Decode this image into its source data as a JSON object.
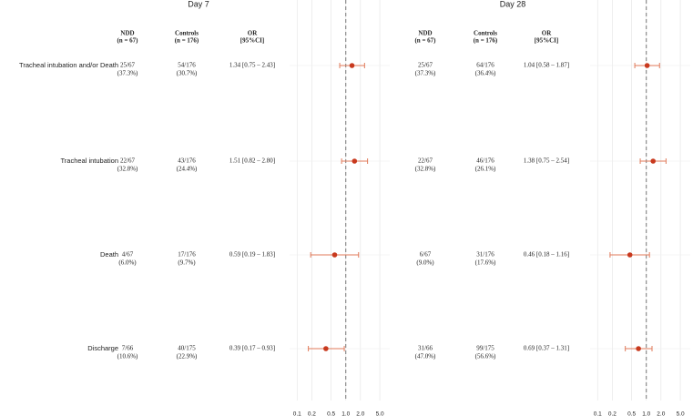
{
  "chart_data": {
    "type": "forest",
    "categories": [
      "Tracheal intubation and/or Death",
      "Tracheal intubation",
      "Death",
      "Discharge"
    ],
    "refline": 1,
    "grid": true,
    "panels": [
      {
        "title": "Day 7",
        "columns": [
          [
            "NDD",
            "(n = 67)"
          ],
          [
            "Controls",
            "(n = 176)"
          ],
          [
            "OR",
            "[95%CI]"
          ]
        ],
        "ndd": [
          [
            "25/67",
            "(37.3%)"
          ],
          [
            "22/67",
            "(32.8%)"
          ],
          [
            "4/67",
            "(6.0%)"
          ],
          [
            "7/66",
            "(10.6%)"
          ]
        ],
        "controls": [
          [
            "54/176",
            "(30.7%)"
          ],
          [
            "43/176",
            "(24.4%)"
          ],
          [
            "17/176",
            "(9.7%)"
          ],
          [
            "40/175",
            "(22.9%)"
          ]
        ],
        "values": [
          1.34,
          1.51,
          0.59,
          0.39
        ],
        "lower": [
          0.75,
          0.82,
          0.19,
          0.17
        ],
        "upper": [
          2.43,
          2.8,
          1.83,
          0.93
        ],
        "value_labels": [
          "1.34 [0.75 – 2.43]",
          "1.51 [0.82 – 2.80]",
          "0.59 [0.19 – 1.83]",
          "0.39 [0.17 – 0.93]"
        ],
        "color": "#c8391e",
        "xlim": [
          0.07,
          8
        ],
        "log_x": true,
        "xticks": [
          0.1,
          0.2,
          0.5,
          {
            "value": 1,
            "label": "1.0"
          },
          {
            "value": 2,
            "label": "2.0"
          },
          {
            "value": 5,
            "label": "5.0"
          }
        ]
      },
      {
        "title": "Day 28",
        "columns": [
          [
            "NDD",
            "(n = 67)"
          ],
          [
            "Controls",
            "(n = 176)"
          ],
          [
            "OR",
            "[95%CI]"
          ]
        ],
        "ndd": [
          [
            "25/67",
            "(37.3%)"
          ],
          [
            "22/67",
            "(32.8%)"
          ],
          [
            "6/67",
            "(9.0%)"
          ],
          [
            "31/66",
            "(47.0%)"
          ]
        ],
        "controls": [
          [
            "64/176",
            "(36.4%)"
          ],
          [
            "46/176",
            "(26.1%)"
          ],
          [
            "31/176",
            "(17.6%)"
          ],
          [
            "99/175",
            "(56.6%)"
          ]
        ],
        "values": [
          1.04,
          1.38,
          0.46,
          0.69
        ],
        "lower": [
          0.58,
          0.75,
          0.18,
          0.37
        ],
        "upper": [
          1.87,
          2.54,
          1.16,
          1.31
        ],
        "value_labels": [
          "1.04 [0.58 – 1.87]",
          "1.38 [0.75 – 2.54]",
          "0.46 [0.18 – 1.16]",
          "0.69 [0.37 – 1.31]"
        ],
        "color": "#c8391e",
        "xlim": [
          0.07,
          8
        ],
        "log_x": true,
        "xticks": [
          0.1,
          0.2,
          0.5,
          {
            "value": 1,
            "label": "1.0"
          },
          {
            "value": 2,
            "label": "2.0"
          },
          {
            "value": 5,
            "label": "5.0"
          }
        ]
      }
    ]
  }
}
